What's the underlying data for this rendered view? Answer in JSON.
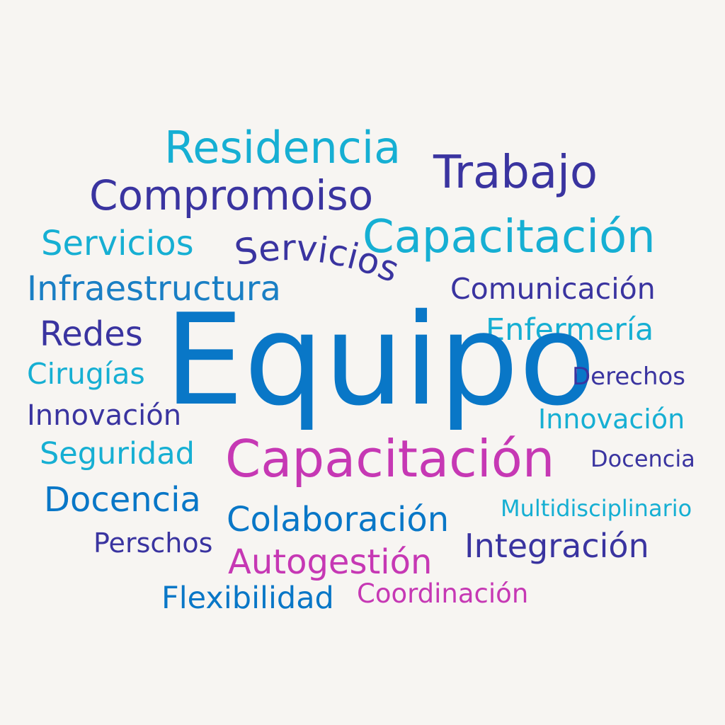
{
  "words": {
    "residencia": "Residencia",
    "trabajo": "Trabajo",
    "compromoiso": "Compromoiso",
    "servicios_1": "Servicios",
    "servicios_2": "Servicios",
    "capacitacion_1": "Capacitación",
    "infraestructura": "Infraestructura",
    "comunicacion": "Comunicación",
    "redes": "Redes",
    "enfermeria": "Enfermería",
    "cirugias": "Cirugías",
    "equipo": "Equipo",
    "derechos": "Derechos",
    "innovacion_1": "Innovación",
    "innovacion_2": "Innovación",
    "seguridad": "Seguridad",
    "capacitacion_2": "Capacitación",
    "docencia_1": "Docencia",
    "docencia_2": "Docencia",
    "multidisciplinario": "Multidisciplinario",
    "colaboracion": "Colaboración",
    "perschos": "Perschos",
    "integracion": "Integración",
    "autogestion": "Autogestión",
    "flexibilidad": "Flexibilidad",
    "coordinacion": "Coordinación"
  },
  "colors": {
    "background": "#f7f5f2",
    "cyan": "#16afd3",
    "indigo": "#3a34a0",
    "blue": "#0977c7",
    "magenta": "#c638b4"
  }
}
